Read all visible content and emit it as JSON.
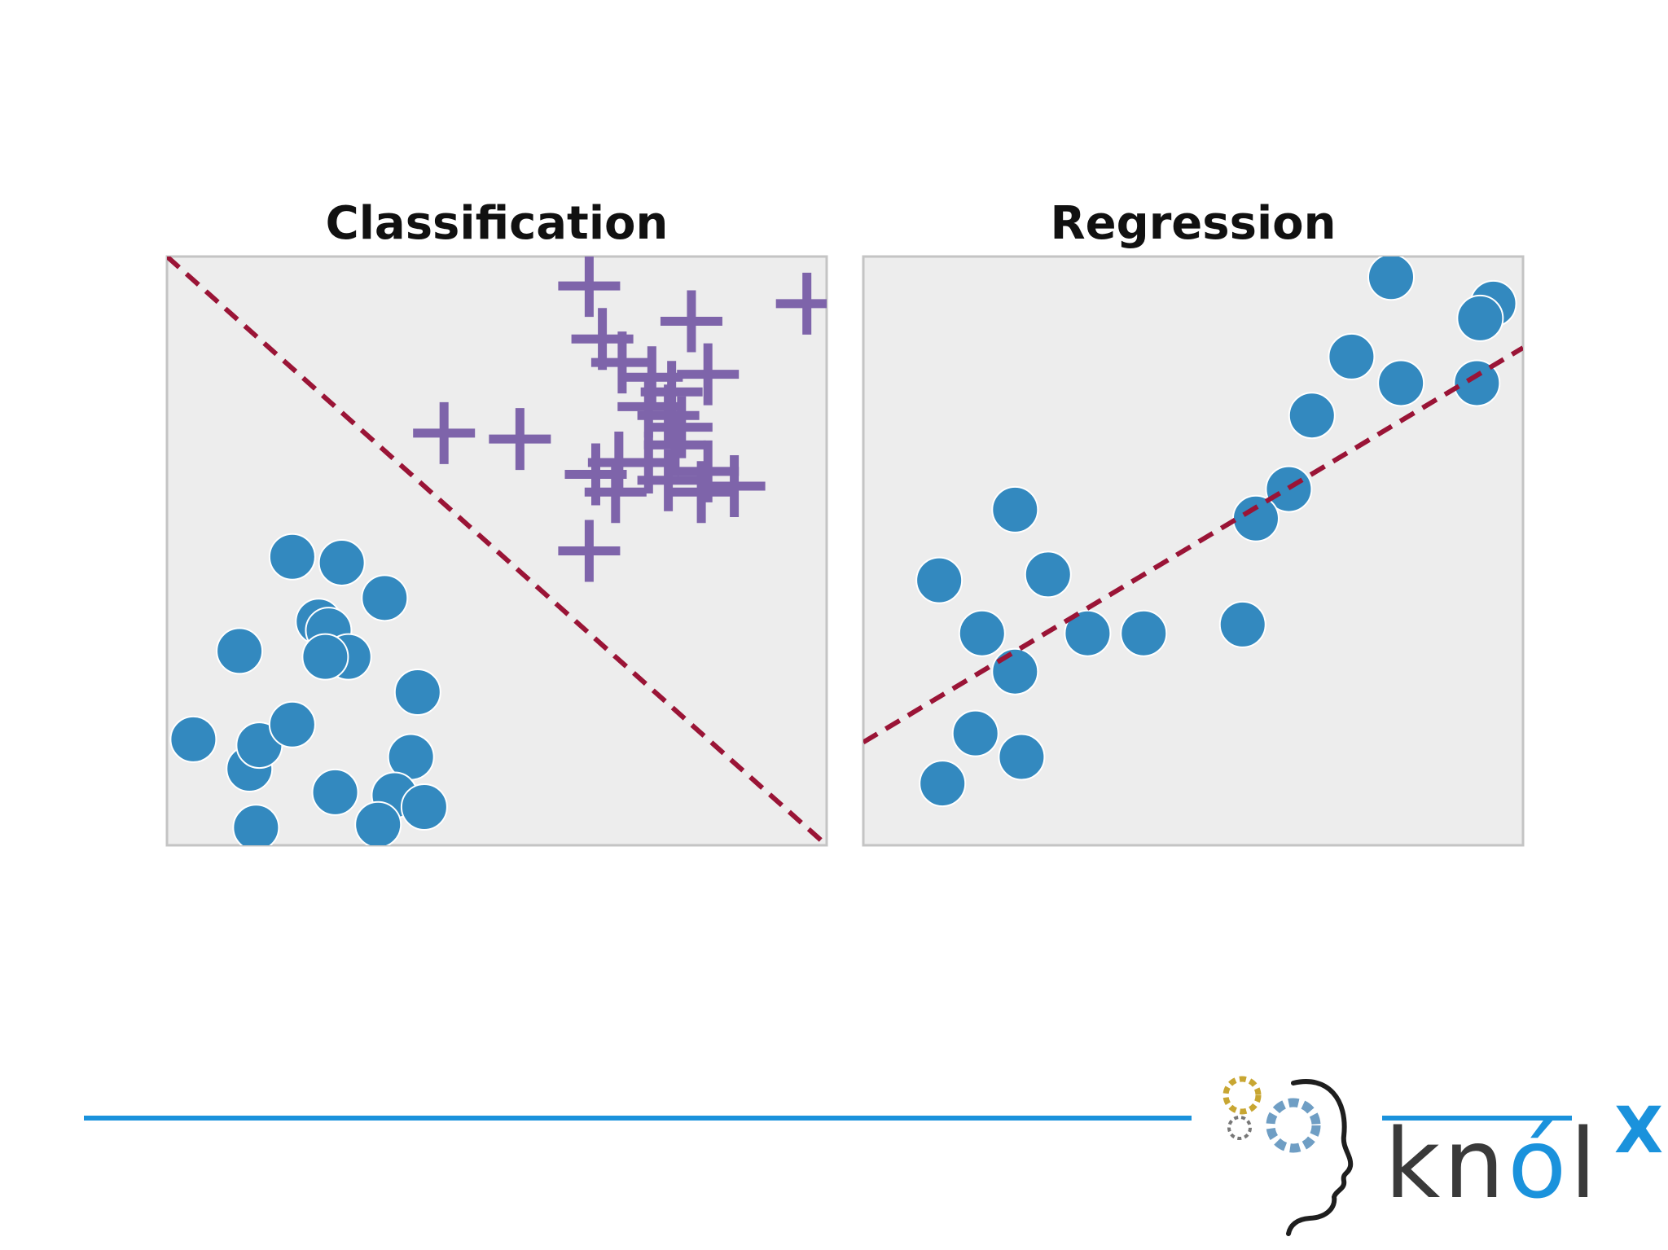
{
  "colors": {
    "background": "#ffffff",
    "plot_background": "#ededed",
    "plot_border": "#c4c4c4",
    "circle_class": "#3389bf",
    "cross_class": "#7e64aa",
    "boundary_line": "#9a1436",
    "brand_blue": "#1a92dc",
    "brand_dark": "#3a3a3a",
    "brand_gold": "#c8a632"
  },
  "chart_data": [
    {
      "type": "scatter",
      "title": "Classification",
      "xlabel": "",
      "ylabel": "",
      "xlim": [
        0,
        10
      ],
      "ylim": [
        0,
        10
      ],
      "grid": false,
      "legend": "none",
      "series": [
        {
          "marker": "circle",
          "color": "#3389bf",
          "points": [
            [
              1.9,
              4.9
            ],
            [
              2.65,
              4.8
            ],
            [
              3.3,
              4.2
            ],
            [
              1.1,
              3.3
            ],
            [
              2.3,
              3.8
            ],
            [
              2.45,
              3.65
            ],
            [
              2.75,
              3.2
            ],
            [
              2.4,
              3.2
            ],
            [
              3.8,
              2.6
            ],
            [
              0.4,
              1.8
            ],
            [
              1.25,
              1.3
            ],
            [
              1.4,
              1.7
            ],
            [
              1.9,
              2.05
            ],
            [
              3.7,
              1.5
            ],
            [
              2.55,
              0.9
            ],
            [
              3.45,
              0.85
            ],
            [
              3.9,
              0.65
            ],
            [
              1.35,
              0.3
            ],
            [
              3.2,
              0.35
            ]
          ]
        },
        {
          "marker": "plus",
          "color": "#7e64aa",
          "points": [
            [
              6.4,
              9.5
            ],
            [
              7.95,
              8.9
            ],
            [
              9.7,
              9.2
            ],
            [
              6.6,
              8.6
            ],
            [
              6.9,
              8.2
            ],
            [
              7.35,
              7.95
            ],
            [
              7.65,
              7.7
            ],
            [
              8.2,
              8.0
            ],
            [
              7.3,
              7.45
            ],
            [
              7.6,
              7.3
            ],
            [
              7.8,
              7.1
            ],
            [
              7.7,
              6.8
            ],
            [
              4.2,
              7.0
            ],
            [
              5.35,
              6.9
            ],
            [
              6.85,
              6.5
            ],
            [
              7.3,
              6.5
            ],
            [
              6.5,
              6.3
            ],
            [
              7.6,
              6.2
            ],
            [
              8.2,
              6.35
            ],
            [
              8.6,
              6.1
            ],
            [
              8.1,
              6.0
            ],
            [
              6.8,
              6.0
            ],
            [
              6.4,
              5.0
            ]
          ]
        }
      ],
      "boundary": {
        "style": "dashed",
        "from": [
          0,
          10
        ],
        "to": [
          10,
          0
        ]
      }
    },
    {
      "type": "scatter",
      "title": "Regression",
      "xlabel": "",
      "ylabel": "",
      "xlim": [
        0,
        10
      ],
      "ylim": [
        0,
        10
      ],
      "grid": false,
      "legend": "none",
      "series": [
        {
          "marker": "circle",
          "color": "#3389bf",
          "points": [
            [
              8.0,
              9.65
            ],
            [
              9.55,
              9.2
            ],
            [
              9.35,
              8.95
            ],
            [
              7.4,
              8.3
            ],
            [
              8.15,
              7.85
            ],
            [
              9.3,
              7.85
            ],
            [
              6.8,
              7.3
            ],
            [
              6.45,
              6.05
            ],
            [
              5.95,
              5.55
            ],
            [
              2.3,
              5.7
            ],
            [
              1.15,
              4.5
            ],
            [
              2.8,
              4.6
            ],
            [
              1.8,
              3.6
            ],
            [
              3.4,
              3.6
            ],
            [
              4.25,
              3.6
            ],
            [
              5.75,
              3.75
            ],
            [
              2.3,
              2.95
            ],
            [
              1.7,
              1.9
            ],
            [
              2.4,
              1.5
            ],
            [
              1.2,
              1.05
            ]
          ]
        }
      ],
      "fit_line": {
        "style": "dashed",
        "from": [
          0,
          1.75
        ],
        "to": [
          10,
          8.45
        ]
      }
    }
  ],
  "brand": {
    "word_pre": "kn",
    "word_accent": "ó",
    "word_post": "l",
    "superscript": "X"
  }
}
